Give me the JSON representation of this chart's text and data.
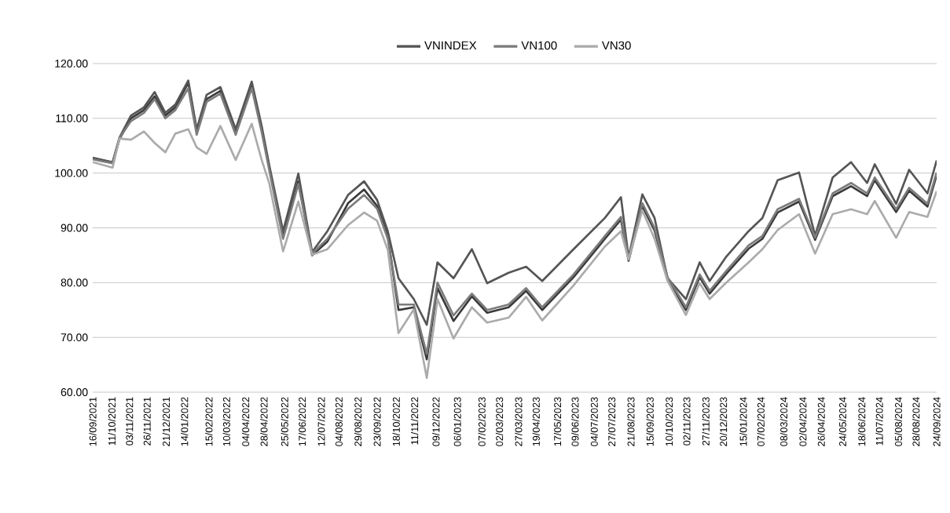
{
  "chart_data": {
    "type": "line",
    "legend": "top",
    "grid": "y",
    "marker": "none",
    "line_style": "solid",
    "x": [
      "2021-09-16",
      "2021-10-12",
      "2021-10-21",
      "2021-11-05",
      "2021-11-22",
      "2021-12-06",
      "2021-12-20",
      "2022-01-02",
      "2022-01-19",
      "2022-01-30",
      "2022-02-12",
      "2022-03-02",
      "2022-03-22",
      "2022-04-12",
      "2022-04-25",
      "2022-05-05",
      "2022-05-23",
      "2022-06-12",
      "2022-06-30",
      "2022-07-20",
      "2022-08-16",
      "2022-09-06",
      "2022-09-23",
      "2022-10-07",
      "2022-10-21",
      "2022-11-10",
      "2022-11-27",
      "2022-12-11",
      "2023-01-01",
      "2023-01-25",
      "2023-02-14",
      "2023-03-14",
      "2023-04-06",
      "2023-04-27",
      "2023-06-07",
      "2023-07-18",
      "2023-08-08",
      "2023-08-18",
      "2023-09-05",
      "2023-09-21",
      "2023-10-08",
      "2023-11-01",
      "2023-11-19",
      "2023-12-02",
      "2023-12-23",
      "2024-01-22",
      "2024-02-09",
      "2024-02-29",
      "2024-03-28",
      "2024-04-18",
      "2024-05-11",
      "2024-06-04",
      "2024-06-25",
      "2024-07-05",
      "2024-08-02",
      "2024-08-19",
      "2024-09-12",
      "2024-09-24"
    ],
    "series": [
      {
        "color": "#3a3a3a",
        "values": [
          102.7,
          101.9,
          106.2,
          110,
          111.5,
          114,
          110.5,
          112,
          116.5,
          107.5,
          113.5,
          115,
          107.5,
          116.2,
          108,
          101,
          88.5,
          98.5,
          85,
          87.5,
          94.5,
          97,
          94,
          88.5,
          75,
          75.5,
          66,
          79,
          73,
          77.5,
          74.5,
          75.5,
          78.5,
          75,
          81,
          88,
          91.5,
          84,
          94,
          89.5,
          80.5,
          75,
          81,
          78,
          81.5,
          86.2,
          88,
          92.8,
          94.8,
          87.8,
          95.8,
          97.6,
          95.8,
          98.7,
          92.9,
          96.8,
          93.9,
          99.6
        ]
      },
      {
        "name": "VNINDEX",
        "color": "#555555",
        "values": [
          102.8,
          102,
          106.5,
          110.5,
          112,
          114.8,
          111,
          112.5,
          116.9,
          108,
          114.3,
          115.7,
          108,
          116.7,
          108.6,
          101.4,
          89.4,
          99.9,
          85.6,
          89.4,
          96,
          98.5,
          95.1,
          89.4,
          80.8,
          77,
          72.3,
          83.7,
          80.8,
          86.1,
          79.9,
          81.8,
          82.9,
          80.3,
          86.1,
          91.8,
          95.6,
          84.6,
          96.1,
          91.8,
          80.8,
          77,
          83.7,
          80.3,
          84.6,
          89.4,
          91.8,
          98.7,
          100.1,
          88.6,
          99.2,
          102,
          98.2,
          101.6,
          94.4,
          100.6,
          96.3,
          102.3
        ]
      },
      {
        "name": "VN100",
        "color": "#7c7c7c",
        "values": [
          102.5,
          101.8,
          106.4,
          109.5,
          111,
          113.5,
          110,
          111.5,
          115.5,
          107,
          113,
          114.5,
          107,
          115.5,
          107.5,
          100.5,
          88,
          98,
          85.3,
          88,
          93.5,
          96,
          93.5,
          88,
          76,
          76,
          67,
          80,
          74,
          78,
          75,
          76,
          79,
          75.5,
          81.5,
          88.5,
          92,
          84.4,
          94.5,
          90,
          81,
          75.5,
          81.5,
          78.5,
          82,
          86.8,
          88.5,
          93.4,
          95.3,
          88.2,
          96.3,
          98.2,
          96.3,
          99.2,
          93.4,
          97.3,
          94.4,
          100.1
        ]
      },
      {
        "name": "VN30",
        "color": "#ababab",
        "values": [
          102,
          101,
          106.3,
          106.1,
          107.6,
          105.5,
          103.8,
          107.2,
          108,
          104.7,
          103.5,
          108.6,
          102.4,
          109,
          102.4,
          98.1,
          85.7,
          94.8,
          85.1,
          86.1,
          90.5,
          92.8,
          91.3,
          86,
          70.8,
          75.1,
          62.6,
          77,
          69.8,
          75.5,
          72.7,
          73.6,
          77.4,
          73.1,
          79.5,
          86.6,
          89.4,
          84.2,
          93.2,
          88,
          80.3,
          74.1,
          79.9,
          77,
          79.9,
          83.7,
          86.1,
          89.6,
          92.5,
          85.3,
          92.5,
          93.4,
          92.5,
          94.9,
          88.2,
          92.9,
          92,
          96.7
        ]
      }
    ],
    "xlim": [
      "2021-09-16",
      "2024-09-24"
    ],
    "ylim": [
      60,
      120
    ],
    "yticks": [
      {
        "value": 60,
        "label": "60.00"
      },
      {
        "value": 70,
        "label": "70.00"
      },
      {
        "value": 80,
        "label": "80.00"
      },
      {
        "value": 90,
        "label": "90.00"
      },
      {
        "value": 100,
        "label": "100.00"
      },
      {
        "value": 110,
        "label": "110.00"
      },
      {
        "value": 120,
        "label": "120.00"
      }
    ],
    "xticks": [
      {
        "value": "2021-09-16",
        "label": "16/09/2021"
      },
      {
        "value": "2021-10-11",
        "label": "11/10/2021"
      },
      {
        "value": "2021-11-03",
        "label": "03/11/2021"
      },
      {
        "value": "2021-11-26",
        "label": "26/11/2021"
      },
      {
        "value": "2021-12-21",
        "label": "21/12/2021"
      },
      {
        "value": "2022-01-14",
        "label": "14/01/2022"
      },
      {
        "value": "2022-02-15",
        "label": "15/02/2022"
      },
      {
        "value": "2022-03-10",
        "label": "10/03/2022"
      },
      {
        "value": "2022-04-04",
        "label": "04/04/2022"
      },
      {
        "value": "2022-04-28",
        "label": "28/04/2022"
      },
      {
        "value": "2022-05-25",
        "label": "25/05/2022"
      },
      {
        "value": "2022-06-17",
        "label": "17/06/2022"
      },
      {
        "value": "2022-07-12",
        "label": "12/07/2022"
      },
      {
        "value": "2022-08-04",
        "label": "04/08/2022"
      },
      {
        "value": "2022-08-29",
        "label": "29/08/2022"
      },
      {
        "value": "2022-09-23",
        "label": "23/09/2022"
      },
      {
        "value": "2022-10-18",
        "label": "18/10/2022"
      },
      {
        "value": "2022-11-11",
        "label": "11/11/2022"
      },
      {
        "value": "2022-12-09",
        "label": "09/12/2022"
      },
      {
        "value": "2023-01-06",
        "label": "06/01/2023"
      },
      {
        "value": "2023-02-07",
        "label": "07/02/2023"
      },
      {
        "value": "2023-03-02",
        "label": "02/03/2023"
      },
      {
        "value": "2023-03-27",
        "label": "27/03/2023"
      },
      {
        "value": "2023-04-19",
        "label": "19/04/2023"
      },
      {
        "value": "2023-05-17",
        "label": "17/05/2023"
      },
      {
        "value": "2023-06-09",
        "label": "09/06/2023"
      },
      {
        "value": "2023-07-04",
        "label": "04/07/2023"
      },
      {
        "value": "2023-07-27",
        "label": "27/07/2023"
      },
      {
        "value": "2023-08-21",
        "label": "21/08/2023"
      },
      {
        "value": "2023-09-15",
        "label": "15/09/2023"
      },
      {
        "value": "2023-10-10",
        "label": "10/10/2023"
      },
      {
        "value": "2023-11-02",
        "label": "02/11/2023"
      },
      {
        "value": "2023-11-27",
        "label": "27/11/2023"
      },
      {
        "value": "2023-12-20",
        "label": "20/12/2023"
      },
      {
        "value": "2024-01-15",
        "label": "15/01/2024"
      },
      {
        "value": "2024-02-07",
        "label": "07/02/2024"
      },
      {
        "value": "2024-03-08",
        "label": "08/03/2024"
      },
      {
        "value": "2024-04-02",
        "label": "02/04/2024"
      },
      {
        "value": "2024-04-26",
        "label": "26/04/2024"
      },
      {
        "value": "2024-05-24",
        "label": "24/05/2024"
      },
      {
        "value": "2024-06-18",
        "label": "18/06/2024"
      },
      {
        "value": "2024-07-11",
        "label": "11/07/2024"
      },
      {
        "value": "2024-08-05",
        "label": "05/08/2024"
      },
      {
        "value": "2024-08-28",
        "label": "28/08/2024"
      },
      {
        "value": "2024-09-24",
        "label": "24/09/2024"
      }
    ]
  }
}
